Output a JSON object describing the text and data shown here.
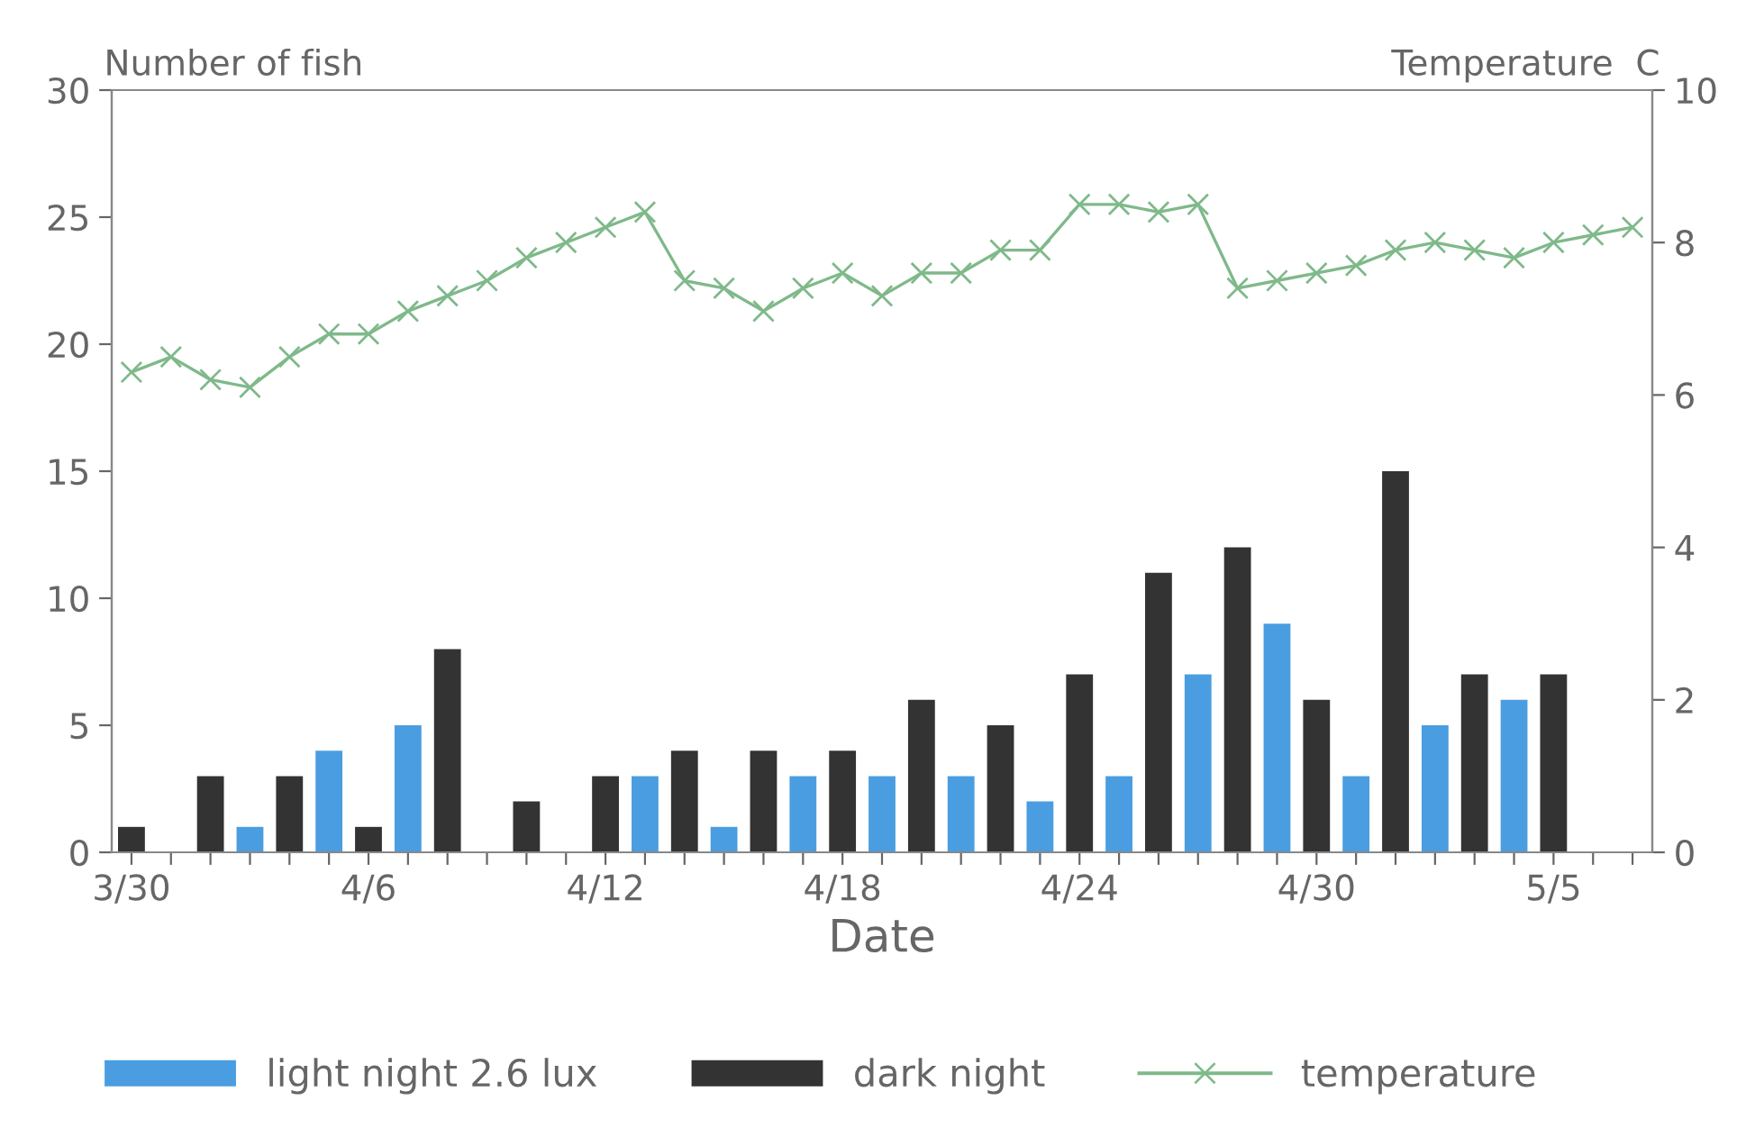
{
  "chart_data": {
    "type": "bar",
    "xlabel": "Date",
    "ylabel": "Number of fish",
    "y2label": "Temperature  C",
    "categories": [
      "3/30",
      null,
      null,
      null,
      null,
      null,
      "4/6",
      null,
      null,
      null,
      null,
      null,
      "4/12",
      null,
      null,
      null,
      null,
      null,
      "4/18",
      null,
      null,
      null,
      null,
      null,
      "4/24",
      null,
      null,
      null,
      null,
      null,
      "4/30",
      null,
      null,
      null,
      null,
      null,
      "5/5",
      null,
      null
    ],
    "series": [
      {
        "name": "light night 2.6 lux",
        "color": "#4a9de0",
        "values": [
          null,
          null,
          null,
          1,
          null,
          4,
          null,
          5,
          null,
          null,
          null,
          null,
          null,
          3,
          null,
          1,
          null,
          3,
          null,
          3,
          null,
          3,
          null,
          2,
          null,
          3,
          null,
          7,
          null,
          9,
          null,
          3,
          null,
          5,
          null,
          6,
          null,
          null,
          null
        ]
      },
      {
        "name": "dark night",
        "color": "#333333",
        "values": [
          1,
          null,
          3,
          null,
          3,
          null,
          1,
          null,
          8,
          null,
          2,
          null,
          3,
          null,
          4,
          null,
          4,
          null,
          4,
          null,
          6,
          null,
          5,
          null,
          7,
          null,
          11,
          null,
          12,
          null,
          6,
          null,
          15,
          null,
          7,
          null,
          7,
          null,
          null
        ]
      },
      {
        "name": "temperature",
        "type": "line",
        "axis": "y2",
        "color": "#7fb98a",
        "marker": "cross",
        "line_style": "solid",
        "values": [
          6.3,
          6.5,
          6.2,
          6.1,
          6.5,
          6.8,
          6.8,
          7.1,
          7.3,
          7.5,
          7.8,
          8.0,
          8.2,
          8.4,
          7.5,
          7.4,
          7.1,
          7.4,
          7.6,
          7.3,
          7.6,
          7.6,
          7.9,
          7.9,
          8.5,
          8.5,
          8.4,
          8.5,
          7.4,
          7.5,
          7.6,
          7.7,
          7.9,
          8.0,
          7.9,
          7.8,
          8.0,
          8.1,
          8.2
        ]
      }
    ],
    "ylim": [
      0,
      30
    ],
    "yticks": [
      0,
      5,
      10,
      15,
      20,
      25,
      30
    ],
    "y2lim": [
      0,
      10
    ],
    "y2ticks": [
      0,
      2,
      4,
      6,
      8,
      10
    ],
    "grid": false,
    "legend": "bottom"
  }
}
